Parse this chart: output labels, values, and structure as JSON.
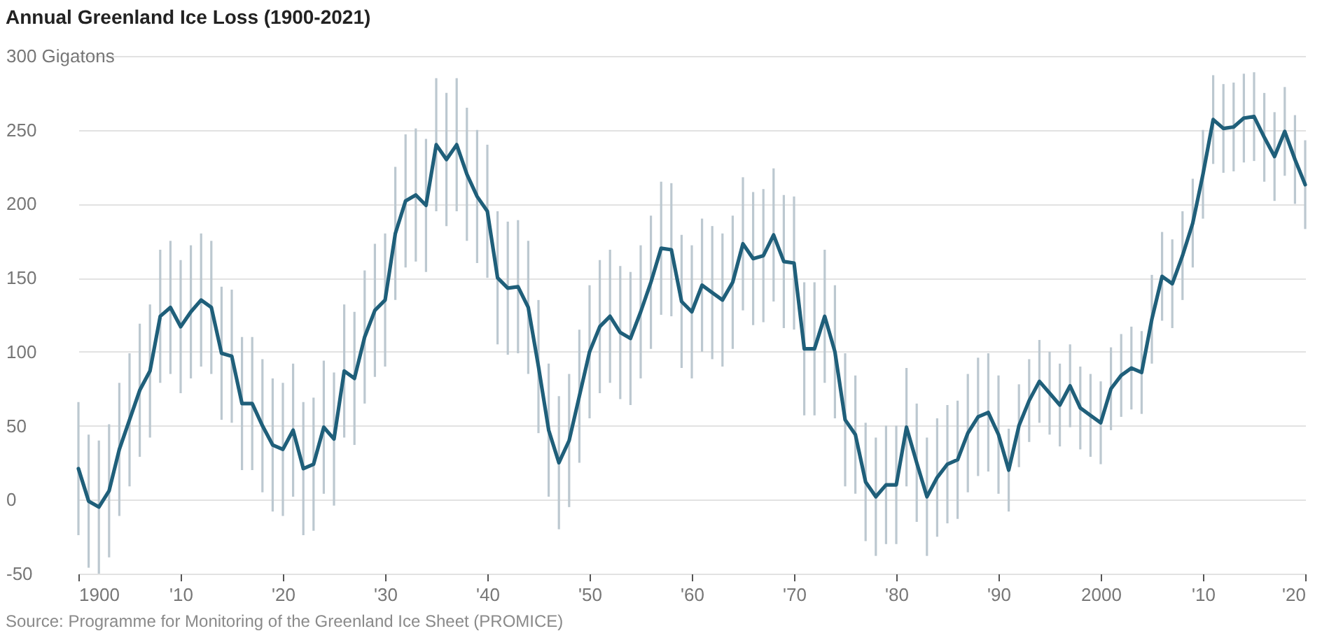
{
  "chart_data": {
    "type": "line",
    "title": "Annual Greenland Ice Loss (1900-2021)",
    "annotations": [
      "Source: Programme for Monitoring of the Greenland Ice Sheet (PROMICE)"
    ],
    "x": [
      1900,
      1901,
      1902,
      1903,
      1904,
      1905,
      1906,
      1907,
      1908,
      1909,
      1910,
      1911,
      1912,
      1913,
      1914,
      1915,
      1916,
      1917,
      1918,
      1919,
      1920,
      1921,
      1922,
      1923,
      1924,
      1925,
      1926,
      1927,
      1928,
      1929,
      1930,
      1931,
      1932,
      1933,
      1934,
      1935,
      1936,
      1937,
      1938,
      1939,
      1940,
      1941,
      1942,
      1943,
      1944,
      1945,
      1946,
      1947,
      1948,
      1949,
      1950,
      1951,
      1952,
      1953,
      1954,
      1955,
      1956,
      1957,
      1958,
      1959,
      1960,
      1961,
      1962,
      1963,
      1964,
      1965,
      1966,
      1967,
      1968,
      1969,
      1970,
      1971,
      1972,
      1973,
      1974,
      1975,
      1976,
      1977,
      1978,
      1979,
      1980,
      1981,
      1982,
      1983,
      1984,
      1985,
      1986,
      1987,
      1988,
      1989,
      1990,
      1991,
      1992,
      1993,
      1994,
      1995,
      1996,
      1997,
      1998,
      1999,
      2000,
      2001,
      2002,
      2003,
      2004,
      2005,
      2006,
      2007,
      2008,
      2009,
      2010,
      2011,
      2012,
      2013,
      2014,
      2015,
      2016,
      2017,
      2018,
      2019,
      2020
    ],
    "series": [
      {
        "color": "#1f5f7a",
        "values": [
          21,
          -1,
          -5,
          6,
          34,
          54,
          74,
          87,
          124,
          130,
          117,
          127,
          135,
          130,
          99,
          97,
          65,
          65,
          50,
          37,
          34,
          47,
          21,
          24,
          49,
          41,
          87,
          82,
          110,
          128,
          135,
          180,
          202,
          206,
          199,
          240,
          230,
          240,
          220,
          205,
          195,
          150,
          143,
          144,
          130,
          90,
          47,
          25,
          40,
          70,
          100,
          117,
          124,
          113,
          109,
          127,
          147,
          170,
          169,
          134,
          127,
          145,
          140,
          135,
          147,
          173,
          163,
          165,
          179,
          161,
          160,
          102,
          102,
          124,
          100,
          54,
          44,
          12,
          2,
          10,
          10,
          49,
          25,
          2,
          15,
          24,
          27,
          45,
          56,
          59,
          44,
          20,
          50,
          67,
          80,
          72,
          64,
          77,
          62,
          57,
          52,
          75,
          84,
          89,
          86,
          122,
          151,
          146,
          165,
          187,
          220,
          257,
          251,
          252,
          258,
          259,
          245,
          232,
          249,
          230,
          213
        ],
        "errors": [
          45,
          45,
          45,
          45,
          45,
          45,
          45,
          45,
          45,
          45,
          45,
          45,
          45,
          45,
          45,
          45,
          45,
          45,
          45,
          45,
          45,
          45,
          45,
          45,
          45,
          45,
          45,
          45,
          45,
          45,
          45,
          45,
          45,
          45,
          45,
          45,
          45,
          45,
          45,
          45,
          45,
          45,
          45,
          45,
          45,
          45,
          45,
          45,
          45,
          45,
          45,
          45,
          45,
          45,
          45,
          45,
          45,
          45,
          45,
          45,
          45,
          45,
          45,
          45,
          45,
          45,
          45,
          45,
          45,
          45,
          45,
          45,
          45,
          45,
          45,
          45,
          40,
          40,
          40,
          40,
          40,
          40,
          40,
          40,
          40,
          40,
          40,
          40,
          40,
          40,
          40,
          28,
          28,
          28,
          28,
          28,
          28,
          28,
          28,
          28,
          28,
          28,
          28,
          28,
          28,
          30,
          30,
          30,
          30,
          30,
          30,
          30,
          30,
          30,
          30,
          30,
          30,
          30,
          30,
          30,
          30
        ]
      }
    ],
    "xlim": [
      1900,
      2020
    ],
    "xticks": [
      {
        "value": 1900,
        "label": "1900"
      },
      {
        "value": 1910,
        "label": "'10"
      },
      {
        "value": 1920,
        "label": "'20"
      },
      {
        "value": 1930,
        "label": "'30"
      },
      {
        "value": 1940,
        "label": "'40"
      },
      {
        "value": 1950,
        "label": "'50"
      },
      {
        "value": 1960,
        "label": "'60"
      },
      {
        "value": 1970,
        "label": "'70"
      },
      {
        "value": 1980,
        "label": "'80"
      },
      {
        "value": 1990,
        "label": "'90"
      },
      {
        "value": 2000,
        "label": "2000"
      },
      {
        "value": 2010,
        "label": "'10"
      },
      {
        "value": 2020,
        "label": "'20"
      }
    ],
    "ylim": [
      -50,
      300
    ],
    "yticks": [
      -50,
      0,
      50,
      100,
      150,
      200,
      250,
      {
        "value": 300,
        "label": "300 Gigatons"
      }
    ],
    "grid": "y"
  }
}
